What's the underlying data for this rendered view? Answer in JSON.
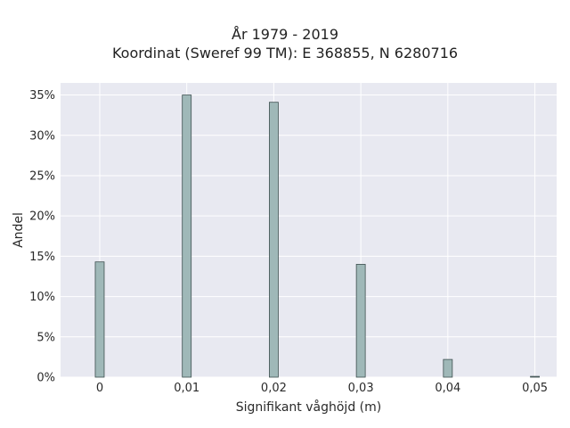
{
  "chart_data": {
    "type": "bar",
    "title": "År 1979 - 2019",
    "subtitle": "Koordinat (Sweref 99 TM): E 368855, N 6280716",
    "xlabel": "Signifikant våghöjd (m)",
    "ylabel": "Andel",
    "x": [
      0,
      0.01,
      0.02,
      0.03,
      0.04,
      0.05
    ],
    "x_tick_labels": [
      "0",
      "0,01",
      "0,02",
      "0,03",
      "0,04",
      "0,05"
    ],
    "values": [
      14.3,
      35.0,
      34.1,
      14.0,
      2.2,
      0.1
    ],
    "y_unit": "%",
    "ylim": [
      0,
      36.5
    ],
    "xlim": [
      -0.0045,
      0.0525
    ],
    "y_ticks": [
      0,
      5,
      10,
      15,
      20,
      25,
      30,
      35
    ],
    "y_tick_labels": [
      "0%",
      "5%",
      "10%",
      "15%",
      "20%",
      "25%",
      "30%",
      "35%"
    ],
    "grid": true,
    "colors": {
      "bar_fill": "#9fb8b8",
      "bar_edge": "#3d4f4f",
      "plot_bg": "#e8e9f1",
      "grid": "#ffffff"
    }
  }
}
